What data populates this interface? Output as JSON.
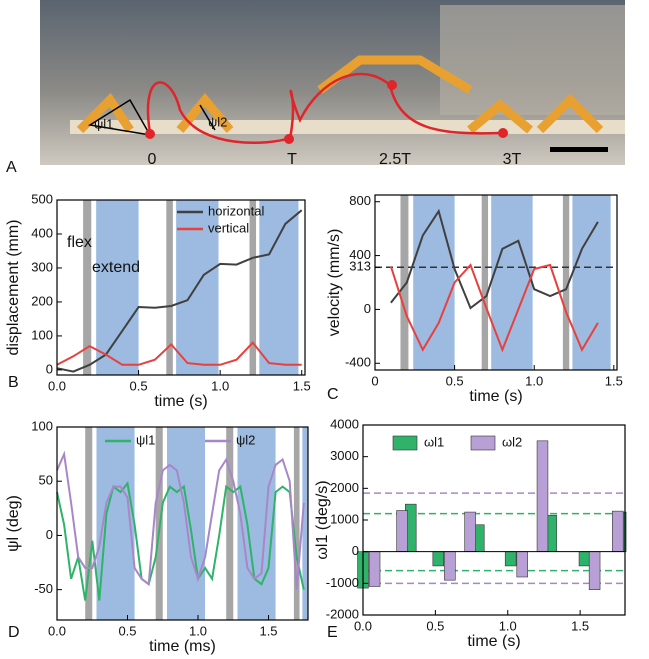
{
  "photo": {
    "panel_label": "A",
    "labels": [
      "0",
      "T",
      "2.5T",
      "3T"
    ],
    "angle_labels": [
      "ψl1",
      "ψl2"
    ]
  },
  "chart_data": [
    {
      "type": "line",
      "panel_label": "B",
      "xlabel": "time (s)",
      "ylabel": "displacement (mm)",
      "annotations": [
        "flex",
        "extend"
      ],
      "xlim": [
        0,
        1.52
      ],
      "ylim": [
        -15,
        500
      ],
      "xticks": [
        {
          "value": 0,
          "label": "0.0"
        },
        0.5,
        {
          "value": 1,
          "label": "1.0"
        },
        1.5
      ],
      "yticks": [
        0,
        100,
        200,
        300,
        400,
        500
      ],
      "shaded_spans": [
        {
          "x": [
            0.16,
            0.21
          ],
          "color": "#a6a6a6"
        },
        {
          "x": [
            0.24,
            0.5
          ],
          "color": "#9dbbe0"
        },
        {
          "x": [
            0.67,
            0.71
          ],
          "color": "#a6a6a6"
        },
        {
          "x": [
            0.73,
            0.99
          ],
          "color": "#9dbbe0"
        },
        {
          "x": [
            1.18,
            1.22
          ],
          "color": "#a6a6a6"
        },
        {
          "x": [
            1.24,
            1.48
          ],
          "color": "#9dbbe0"
        }
      ],
      "x": [
        0,
        0.1,
        0.2,
        0.3,
        0.4,
        0.5,
        0.6,
        0.7,
        0.8,
        0.9,
        1.0,
        1.1,
        1.2,
        1.3,
        1.4,
        1.5
      ],
      "series": [
        {
          "name": "horizontal",
          "color": "#404040",
          "values": [
            5,
            -5,
            15,
            45,
            115,
            185,
            183,
            188,
            205,
            280,
            312,
            310,
            330,
            340,
            430,
            470
          ]
        },
        {
          "name": "vertical",
          "color": "#e8403c",
          "values": [
            15,
            40,
            70,
            45,
            15,
            15,
            30,
            75,
            20,
            15,
            15,
            30,
            80,
            20,
            15,
            15
          ]
        }
      ]
    },
    {
      "type": "line",
      "panel_label": "C",
      "xlabel": "time (s)",
      "ylabel": "velocity (mm/s)",
      "xlim": [
        0,
        1.52
      ],
      "ylim": [
        -450,
        850
      ],
      "xticks": [
        0,
        0.5,
        {
          "value": 1,
          "label": "1.0"
        },
        1.5
      ],
      "yticks": [
        -400,
        0,
        313,
        400,
        800
      ],
      "reference_lines": [
        {
          "value": 313,
          "color": "#333333"
        }
      ],
      "shaded_spans": [
        {
          "x": [
            0.16,
            0.21
          ],
          "color": "#a6a6a6"
        },
        {
          "x": [
            0.24,
            0.5
          ],
          "color": "#9dbbe0"
        },
        {
          "x": [
            0.67,
            0.71
          ],
          "color": "#a6a6a6"
        },
        {
          "x": [
            0.73,
            0.99
          ],
          "color": "#9dbbe0"
        },
        {
          "x": [
            1.18,
            1.22
          ],
          "color": "#a6a6a6"
        },
        {
          "x": [
            1.24,
            1.48
          ],
          "color": "#9dbbe0"
        }
      ],
      "x": [
        0.1,
        0.2,
        0.3,
        0.4,
        0.5,
        0.6,
        0.7,
        0.8,
        0.9,
        1.0,
        1.1,
        1.2,
        1.3,
        1.4
      ],
      "series": [
        {
          "color": "#404040",
          "values": [
            50,
            200,
            550,
            730,
            300,
            10,
            100,
            450,
            510,
            150,
            100,
            150,
            450,
            650
          ]
        },
        {
          "color": "#e8403c",
          "values": [
            320,
            -50,
            -300,
            -100,
            200,
            330,
            10,
            -300,
            0,
            300,
            330,
            -20,
            -300,
            -100
          ]
        }
      ]
    },
    {
      "type": "line",
      "panel_label": "D",
      "xlabel": "time (ms)",
      "ylabel": "ψl (deg)",
      "xlim": [
        0,
        1.78
      ],
      "ylim": [
        -78,
        100
      ],
      "xticks": [
        {
          "value": 0,
          "label": "0.0"
        },
        0.5,
        {
          "value": 1,
          "label": "1.0"
        },
        1.5
      ],
      "yticks": [
        -50,
        0,
        50,
        100
      ],
      "shaded_spans": [
        {
          "x": [
            0.2,
            0.25
          ],
          "color": "#a6a6a6"
        },
        {
          "x": [
            0.28,
            0.55
          ],
          "color": "#9dbbe0"
        },
        {
          "x": [
            0.7,
            0.75
          ],
          "color": "#a6a6a6"
        },
        {
          "x": [
            0.78,
            1.05
          ],
          "color": "#9dbbe0"
        },
        {
          "x": [
            1.2,
            1.25
          ],
          "color": "#a6a6a6"
        },
        {
          "x": [
            1.28,
            1.55
          ],
          "color": "#9dbbe0"
        },
        {
          "x": [
            1.68,
            1.72
          ],
          "color": "#a6a6a6"
        },
        {
          "x": [
            1.74,
            1.78
          ],
          "color": "#9dbbe0"
        }
      ],
      "x": [
        0,
        0.05,
        0.1,
        0.15,
        0.2,
        0.25,
        0.3,
        0.35,
        0.4,
        0.45,
        0.5,
        0.55,
        0.6,
        0.65,
        0.7,
        0.75,
        0.8,
        0.85,
        0.9,
        0.95,
        1.0,
        1.05,
        1.1,
        1.15,
        1.2,
        1.25,
        1.3,
        1.35,
        1.4,
        1.45,
        1.5,
        1.55,
        1.6,
        1.65,
        1.7,
        1.75
      ],
      "series": [
        {
          "name": "ψl1",
          "color": "#2fb36a",
          "values": [
            40,
            10,
            -40,
            -20,
            -60,
            -5,
            -60,
            20,
            45,
            40,
            48,
            10,
            -40,
            -45,
            -20,
            30,
            45,
            40,
            45,
            5,
            -40,
            -30,
            -40,
            0,
            45,
            40,
            45,
            10,
            -40,
            -45,
            -30,
            40,
            45,
            40,
            -20,
            -50
          ]
        },
        {
          "name": "ψl2",
          "color": "#a887c9",
          "values": [
            60,
            75,
            30,
            -20,
            -30,
            -30,
            -10,
            30,
            45,
            45,
            35,
            -30,
            -40,
            -45,
            30,
            60,
            65,
            60,
            30,
            -20,
            -40,
            -20,
            20,
            60,
            70,
            50,
            20,
            -30,
            -40,
            -35,
            45,
            65,
            70,
            50,
            -50,
            30
          ]
        }
      ]
    },
    {
      "type": "bar",
      "panel_label": "E",
      "xlabel": "time (s)",
      "ylabel": "ωl1 (deg/s)",
      "xlim": [
        0,
        1.81
      ],
      "ylim": [
        -2000,
        4000
      ],
      "xticks": [
        {
          "value": 0,
          "label": "0.0"
        },
        0.5,
        {
          "value": 1,
          "label": "1.0"
        },
        1.5
      ],
      "yticks": [
        -2000,
        -1000,
        0,
        1000,
        2000,
        3000,
        4000
      ],
      "reference_lines": [
        {
          "value": 1850,
          "color": "#a887c9"
        },
        {
          "value": -1000,
          "color": "#a887c9"
        },
        {
          "value": 1200,
          "color": "#2fb36a"
        },
        {
          "value": -600,
          "color": "#2fb36a"
        }
      ],
      "series": [
        {
          "name": "ωl1",
          "color": "#2fb36a",
          "x": [
            0.0,
            0.33,
            0.52,
            0.8,
            1.02,
            1.3,
            1.53,
            1.78
          ],
          "values": [
            -1150,
            1500,
            -450,
            850,
            -450,
            1150,
            -450,
            1250
          ]
        },
        {
          "name": "ωl2",
          "color": "#b8a0d6",
          "x": [
            0.08,
            0.27,
            0.6,
            0.74,
            1.1,
            1.24,
            1.6,
            1.76
          ],
          "values": [
            -1100,
            1300,
            -900,
            1250,
            -800,
            3500,
            -1200,
            1280
          ]
        }
      ]
    }
  ]
}
